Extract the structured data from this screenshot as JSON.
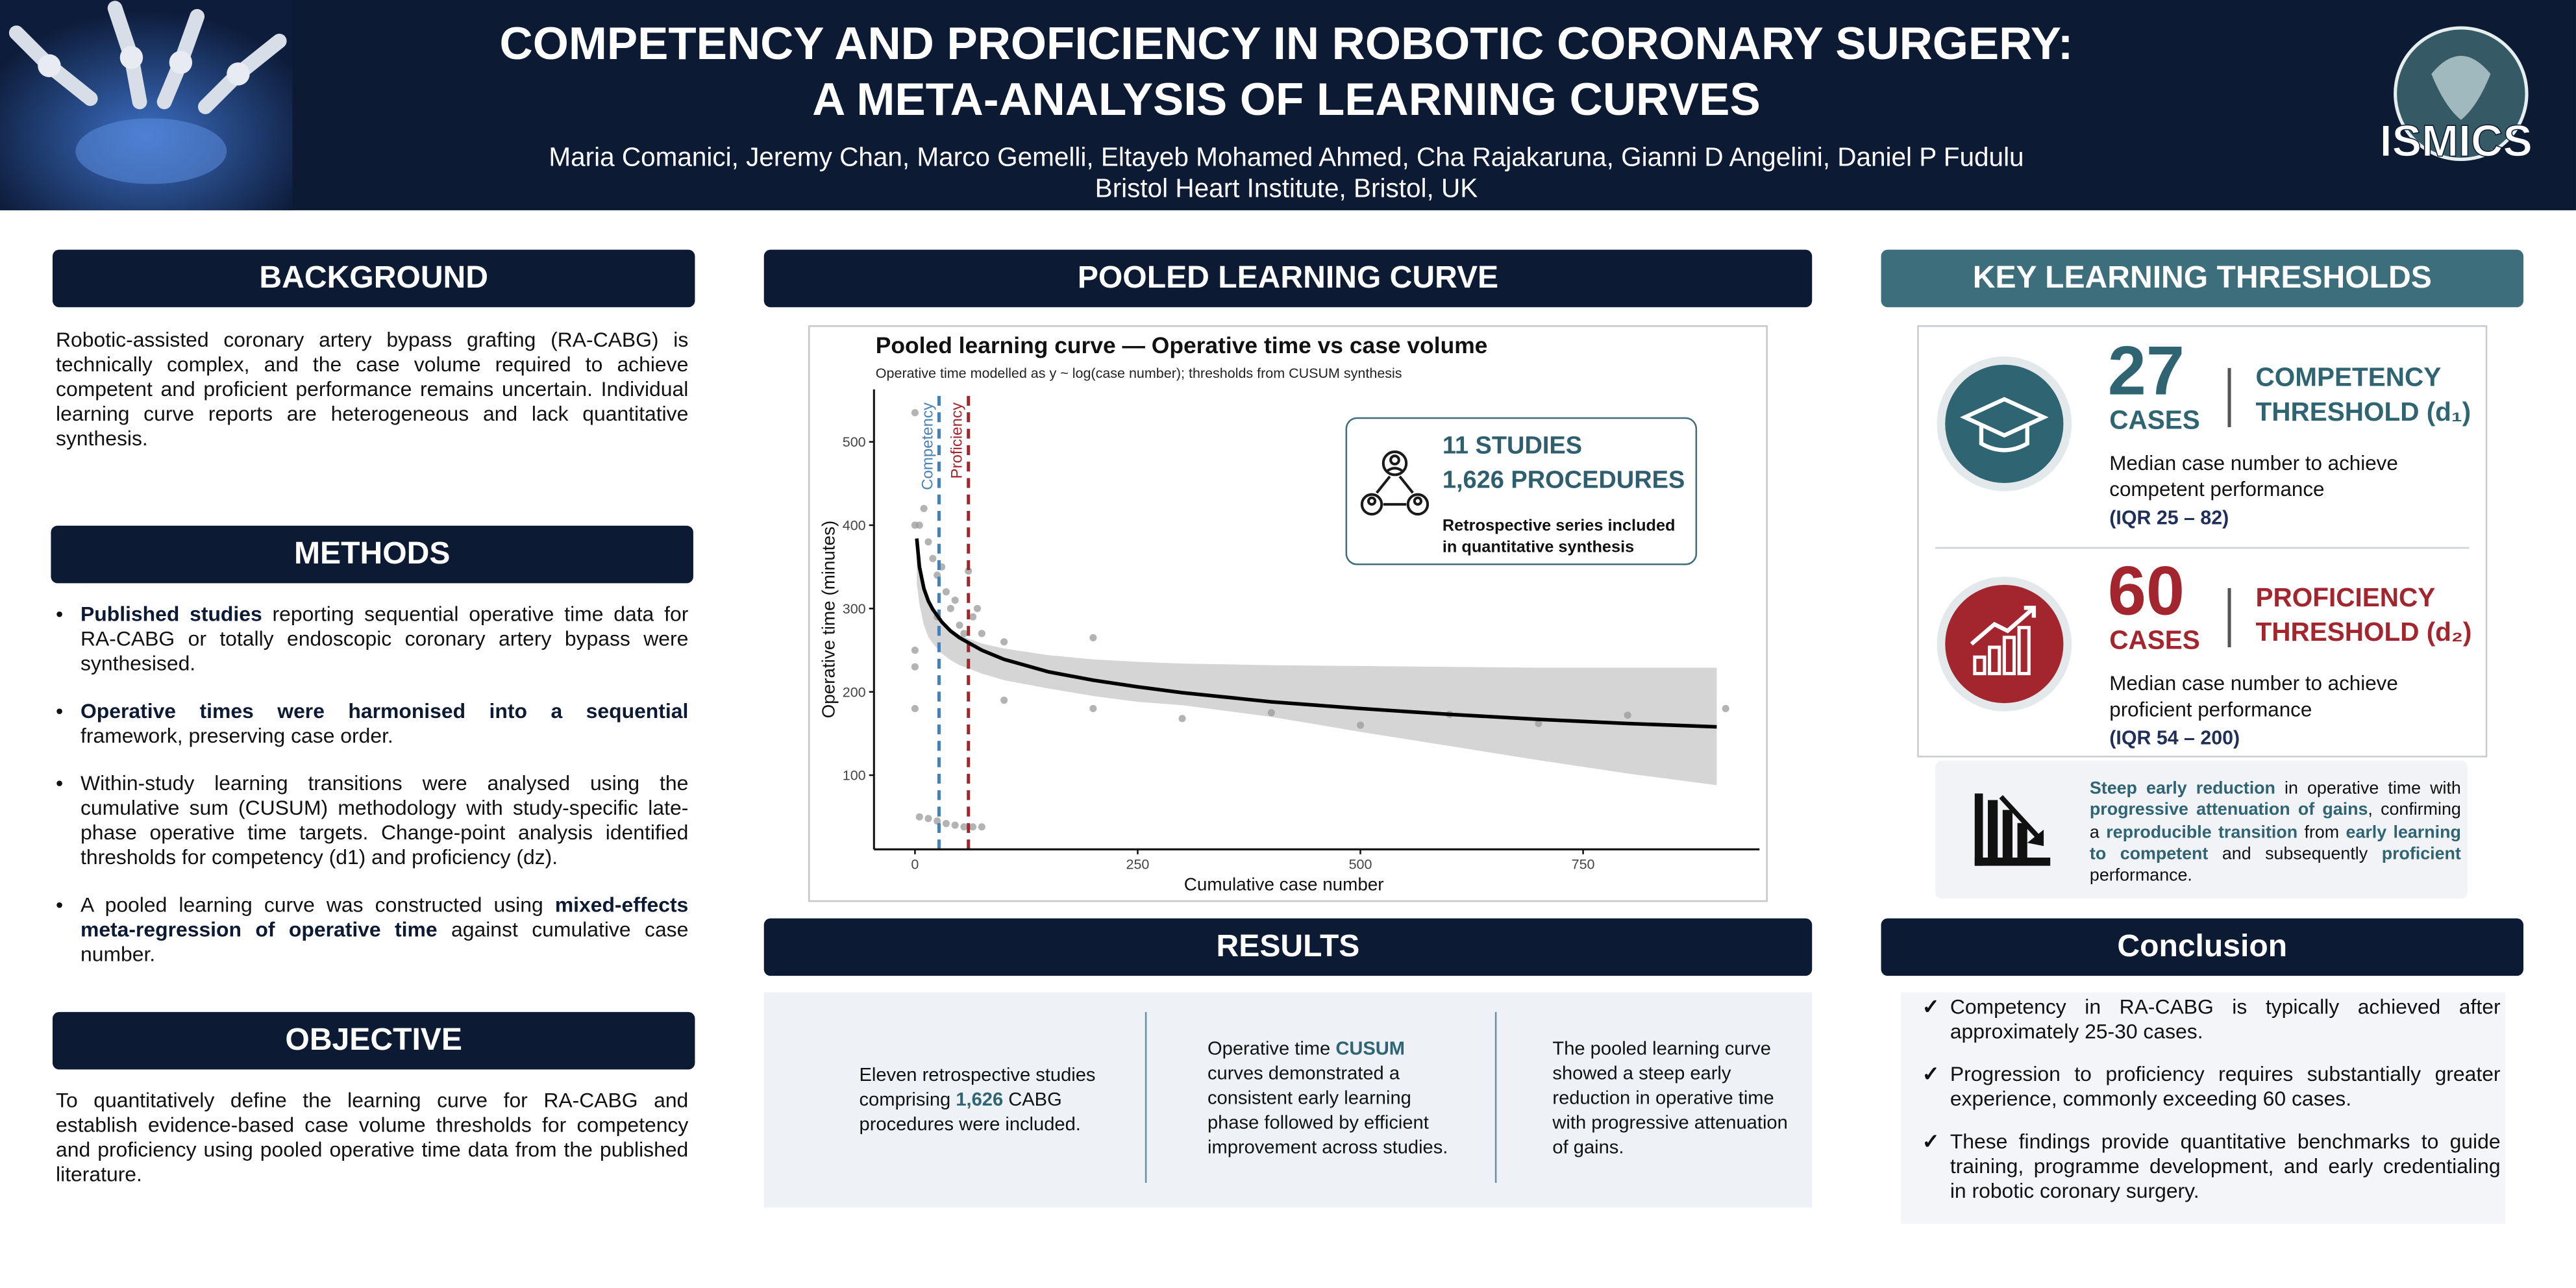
{
  "header": {
    "title": [
      "COMPETENCY AND PROFICIENCY IN ROBOTIC CORONARY SURGERY:",
      "A META-ANALYSIS OF LEARNING CURVES"
    ],
    "authors": "Maria Comanici, Jeremy Chan, Marco Gemelli, Eltayeb Mohamed Ahmed, Cha Rajakaruna, Gianni D Angelini, Daniel P Fudulu",
    "affiliation": "Bristol Heart Institute, Bristol, UK",
    "logo": "ISMICS"
  },
  "background": {
    "heading": "BACKGROUND",
    "text": "Robotic-assisted coronary artery bypass grafting (RA-CABG) is technically complex, and the case volume required to achieve competent and proficient performance remains uncertain. Individual learning curve reports are heterogeneous and lack quantitative synthesis."
  },
  "methods": {
    "heading": "METHODS",
    "items": [
      [
        {
          "text": "Published studies",
          "style": "bold"
        },
        {
          "text": " reporting sequential operative time data for RA-CABG or totally endoscopic coronary artery bypass were synthesised."
        }
      ],
      [
        {
          "text": "Operative times were harmonised into a sequential",
          "style": "bold"
        },
        {
          "text": " framework, preserving case order."
        }
      ],
      [
        {
          "text": "Within-study learning transitions were analysed using the cumulative sum (CUSUM) methodology with study-specific late-phase operative time targets. Change-point analysis identified thresholds for competency (d1) and proficiency (dz)."
        }
      ],
      [
        {
          "text": "A pooled learning curve was constructed using "
        },
        {
          "text": "mixed-effects meta-regression of operative time",
          "style": "bold"
        },
        {
          "text": " against cumulative case number."
        }
      ]
    ]
  },
  "objective": {
    "heading": "OBJECTIVE",
    "text": "To quantitatively define the learning curve for RA-CABG and establish evidence-based case volume thresholds for competency and proficiency using pooled operative time data from the published literature."
  },
  "chart_heading": "POOLED LEARNING CURVE",
  "chart_data": {
    "type": "scatter",
    "title": "Pooled learning curve — Operative time vs case volume",
    "subtitle": "Operative time modelled as y ~ log(case number); thresholds from CUSUM synthesis",
    "x_label": "Cumulative case number",
    "y_label": "Operative time (minutes)",
    "xlim": [
      -46,
      948
    ],
    "ylim": [
      11,
      563
    ],
    "xticks": [
      0,
      250,
      500,
      750
    ],
    "yticks": [
      100,
      200,
      300,
      400,
      500
    ],
    "points": {
      "color": "#9a9a9a",
      "x": [
        0,
        0,
        5,
        0,
        0,
        0,
        10,
        15,
        20,
        25,
        25,
        30,
        35,
        40,
        45,
        50,
        55,
        60,
        65,
        70,
        75,
        100,
        200,
        200,
        300,
        400,
        500,
        600,
        700,
        800,
        910,
        5,
        15,
        25,
        35,
        45,
        55,
        65,
        75,
        100
      ],
      "values": [
        535,
        400,
        400,
        250,
        230,
        180,
        420,
        380,
        360,
        340,
        290,
        350,
        320,
        300,
        310,
        280,
        270,
        345,
        290,
        300,
        270,
        260,
        265,
        180,
        168,
        175,
        160,
        173,
        162,
        172,
        180,
        50,
        48,
        45,
        42,
        40,
        38,
        38,
        38,
        190
      ]
    },
    "band": {
      "color": "#d3d3d3",
      "x": [
        2,
        5,
        10,
        15,
        20,
        30,
        40,
        50,
        75,
        100,
        150,
        200,
        250,
        300,
        400,
        500,
        600,
        700,
        800,
        900
      ],
      "upper": [
        380,
        345,
        320,
        305,
        295,
        282,
        274,
        268,
        258,
        252,
        244,
        239,
        236,
        234,
        232,
        231,
        230,
        229,
        229,
        229
      ],
      "lower": [
        330,
        305,
        280,
        266,
        258,
        246,
        238,
        232,
        222,
        214,
        204,
        195,
        188,
        184,
        170,
        152,
        135,
        118,
        102,
        88
      ]
    },
    "curve": {
      "color": "#000000",
      "x": [
        2,
        5,
        10,
        15,
        20,
        30,
        40,
        50,
        75,
        100,
        150,
        200,
        250,
        300,
        400,
        500,
        600,
        700,
        800,
        900
      ],
      "values": [
        384,
        350,
        324,
        309,
        299,
        284,
        273,
        265,
        250,
        239,
        224,
        214,
        206,
        199,
        188,
        180,
        173,
        167,
        162,
        158
      ]
    },
    "thresholds": [
      {
        "label": "Competency",
        "value": 27,
        "color": "#4a7fb5"
      },
      {
        "label": "Proficiency",
        "value": 60,
        "color": "#a3262e"
      }
    ],
    "annotation": {
      "lines": [
        "11 STUDIES",
        "1,626 PROCEDURES"
      ],
      "note": "Retrospective series included in quantitative synthesis"
    }
  },
  "results": {
    "heading": "RESULTS",
    "items": [
      [
        {
          "text": "Eleven retrospective studies comprising "
        },
        {
          "text": "1,626",
          "style": "accent"
        },
        {
          "text": " CABG procedures were included."
        }
      ],
      [
        {
          "text": "Operative time "
        },
        {
          "text": "CUSUM",
          "style": "accent"
        },
        {
          "text": " curves demonstrated a consistent early learning phase followed by efficient improvement across studies."
        }
      ],
      [
        {
          "text": "The pooled learning curve showed a steep early reduction in operative time with progressive attenuation of gains."
        }
      ]
    ]
  },
  "thresholds": {
    "heading": "KEY LEARNING THRESHOLDS",
    "items": [
      {
        "number": 27,
        "unit": "CASES",
        "label": [
          "COMPETENCY",
          "THRESHOLD (d₁)"
        ],
        "text": "Median case number to achieve competent performance",
        "iqr": "(IQR 25 – 82)",
        "color": "#2f6472"
      },
      {
        "number": 60,
        "unit": "CASES",
        "label": [
          "PROFICIENCY",
          "THRESHOLD (d₂)"
        ],
        "text": "Median case number to achieve proficient performance",
        "iqr": "(IQR 54 – 200)",
        "color": "#a3262e"
      }
    ],
    "summary": [
      {
        "text": "Steep early reduction",
        "style": "accent"
      },
      {
        "text": " in operative time with "
      },
      {
        "text": "progressive attenuation of gains",
        "style": "accent"
      },
      {
        "text": ", confirming a "
      },
      {
        "text": "reproducible transition",
        "style": "accent"
      },
      {
        "text": " from "
      },
      {
        "text": "early learning to competent",
        "style": "accent"
      },
      {
        "text": " and subsequently "
      },
      {
        "text": "proficient",
        "style": "accent"
      },
      {
        "text": " performance."
      }
    ]
  },
  "conclusion": {
    "heading": "Conclusion",
    "items": [
      "Competency in RA-CABG is typically achieved after approximately 25-30 cases.",
      "Progression to proficiency requires substantially greater experience, commonly exceeding 60 cases.",
      "These findings provide quantitative benchmarks to guide training, programme development, and early credentialing in robotic coronary surgery."
    ]
  }
}
